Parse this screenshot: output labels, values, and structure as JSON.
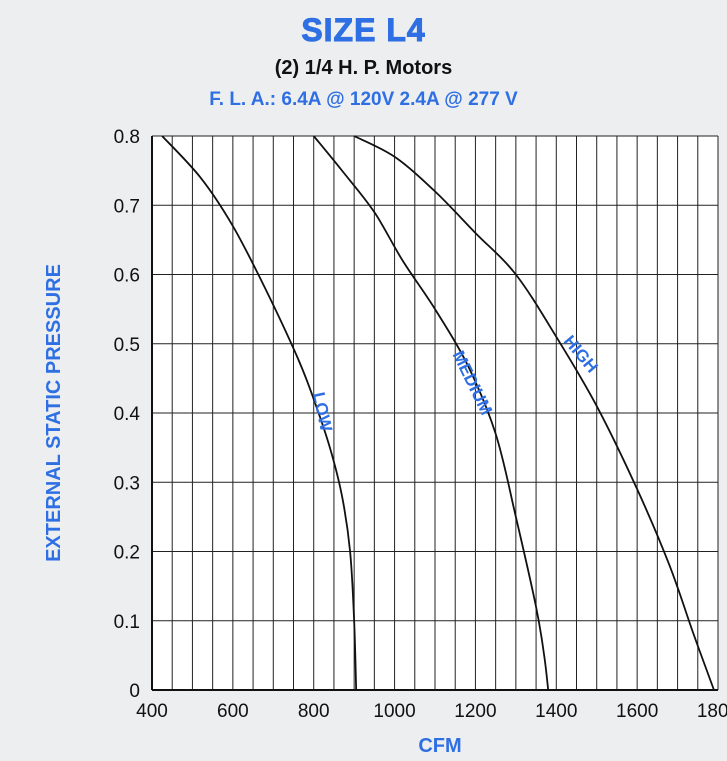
{
  "header": {
    "title": "SIZE L4",
    "subtitle": "(2) 1/4 H. P. Motors",
    "info": "F. L. A.: 6.4A @ 120V  2.4A @ 277 V"
  },
  "colors": {
    "accent": "#2e6fe3",
    "line": "#111111",
    "grid": "#222222"
  },
  "chart_data": {
    "type": "line",
    "xlabel": "CFM",
    "ylabel": "EXTERNAL STATIC PRESSURE",
    "xlim": [
      400,
      1800
    ],
    "ylim": [
      0,
      0.8
    ],
    "x_ticks": [
      400,
      600,
      800,
      1000,
      1200,
      1400,
      1600,
      1800
    ],
    "x_tick_labels": [
      "400",
      "600",
      "800",
      "1000",
      "1200",
      "1400",
      "1600",
      "1800"
    ],
    "y_ticks": [
      0,
      0.1,
      0.2,
      0.3,
      0.4,
      0.5,
      0.6,
      0.7,
      0.8
    ],
    "y_tick_labels": [
      "0",
      "0.1",
      "0.2",
      "0.3",
      "0.4",
      "0.5",
      "0.6",
      "0.7",
      "0.8"
    ],
    "grid": true,
    "series": [
      {
        "name": "LOW",
        "x": [
          425,
          520,
          600,
          680,
          760,
          800,
          840,
          870,
          890,
          900,
          905
        ],
        "y": [
          0.8,
          0.74,
          0.67,
          0.58,
          0.48,
          0.42,
          0.35,
          0.28,
          0.2,
          0.1,
          0
        ]
      },
      {
        "name": "MEDIUM",
        "x": [
          800,
          870,
          950,
          1020,
          1100,
          1180,
          1250,
          1300,
          1350,
          1370,
          1380
        ],
        "y": [
          0.8,
          0.75,
          0.69,
          0.62,
          0.55,
          0.47,
          0.37,
          0.25,
          0.12,
          0.05,
          0
        ]
      },
      {
        "name": "HIGH",
        "x": [
          900,
          1000,
          1100,
          1200,
          1300,
          1400,
          1500,
          1600,
          1680,
          1740,
          1790
        ],
        "y": [
          0.8,
          0.77,
          0.72,
          0.66,
          0.6,
          0.51,
          0.41,
          0.29,
          0.18,
          0.08,
          0
        ]
      }
    ],
    "labels": [
      {
        "text": "LOW",
        "series": "LOW"
      },
      {
        "text": "MEDIUM",
        "series": "MEDIUM"
      },
      {
        "text": "HIGH",
        "series": "HIGH"
      }
    ]
  }
}
